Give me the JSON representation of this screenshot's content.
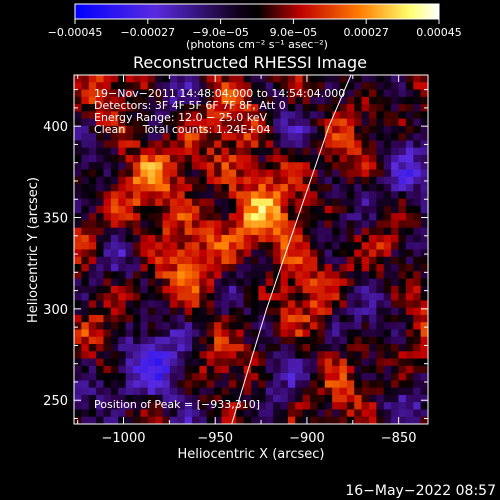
{
  "chart_data": {
    "type": "heatmap",
    "title": "Reconstructed RHESSI Image",
    "xlabel": "Heliocentric X (arcsec)",
    "ylabel": "Heliocentric Y (arcsec)",
    "xlim": [
      -1027,
      -834
    ],
    "ylim": [
      237,
      428
    ],
    "x_ticks": [
      -1000,
      -950,
      -900,
      -850
    ],
    "x_tick_labels": [
      "−1000",
      "−950",
      "−900",
      "−850"
    ],
    "y_ticks": [
      250,
      300,
      350,
      400
    ],
    "y_tick_labels": [
      "250",
      "300",
      "350",
      "400"
    ],
    "colorbar": {
      "range": [
        -0.00045,
        0.00045
      ],
      "ticks": [
        -0.00045,
        -0.00027,
        -9e-05,
        9e-05,
        0.00027,
        0.00045
      ],
      "tick_labels": [
        "−0.00045",
        "−0.00027",
        "−9.0e−05",
        "9.0e−05",
        "0.00027",
        "0.00045"
      ],
      "unit_label": "(photons cm⁻² s⁻¹ asec⁻²)",
      "colors": [
        "#0000ff",
        "#6a2ad8",
        "#000000",
        "#c40000",
        "#ff7a00",
        "#ffff7a",
        "#ffffff"
      ]
    },
    "info_lines": [
      "19−Nov−2011 14:48:04.000 to 14:54:04.000",
      "Detectors: 3F 4F 5F 6F 7F 8F, Att 0",
      "Energy Range: 12.0 − 25.0 keV",
      "Clean     Total counts: 1.24E+04"
    ],
    "peak_label": "Position of Peak = [−933,310]",
    "grid": false,
    "limb_curve": [
      [
        -941,
        237
      ],
      [
        -922,
        300
      ],
      [
        -905,
        350
      ],
      [
        -888,
        400
      ],
      [
        -876,
        428
      ]
    ]
  },
  "footer": {
    "date": "16−May−2022 08:57"
  }
}
